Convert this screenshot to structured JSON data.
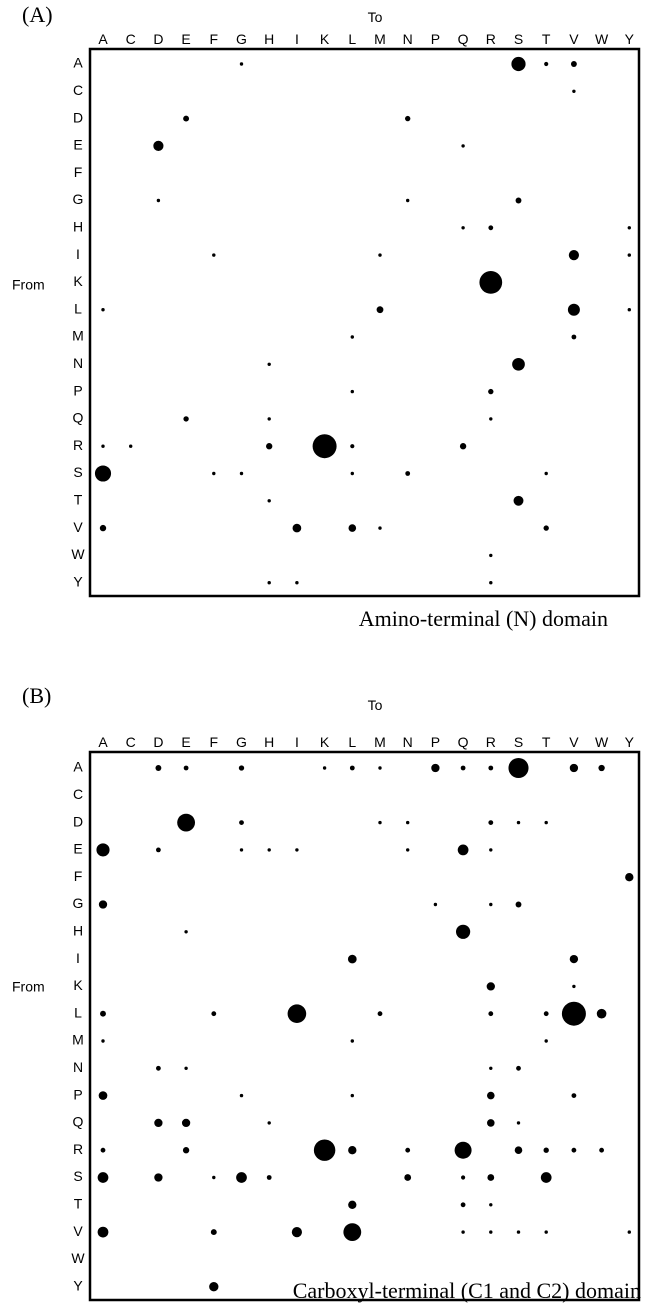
{
  "chart_data": [
    {
      "type": "scatter",
      "panel_label": "(A)",
      "xlabel": "To",
      "ylabel": "From",
      "caption": "Amino-terminal (N) domain",
      "to_labels": [
        "A",
        "C",
        "D",
        "E",
        "F",
        "G",
        "H",
        "I",
        "K",
        "L",
        "M",
        "N",
        "P",
        "Q",
        "R",
        "S",
        "T",
        "V",
        "W",
        "Y"
      ],
      "from_labels": [
        "A",
        "C",
        "D",
        "E",
        "F",
        "G",
        "H",
        "I",
        "K",
        "L",
        "M",
        "N",
        "P",
        "Q",
        "R",
        "S",
        "T",
        "V",
        "W",
        "Y"
      ],
      "size_scale": "circle area proportional to relative substitution frequency (1 = largest)",
      "points": [
        {
          "from": "A",
          "to": "G",
          "value": 0.02
        },
        {
          "from": "A",
          "to": "S",
          "value": 0.35
        },
        {
          "from": "A",
          "to": "T",
          "value": 0.03
        },
        {
          "from": "A",
          "to": "V",
          "value": 0.06
        },
        {
          "from": "C",
          "to": "V",
          "value": 0.02
        },
        {
          "from": "D",
          "to": "E",
          "value": 0.06
        },
        {
          "from": "D",
          "to": "N",
          "value": 0.05
        },
        {
          "from": "E",
          "to": "D",
          "value": 0.18
        },
        {
          "from": "E",
          "to": "Q",
          "value": 0.02
        },
        {
          "from": "G",
          "to": "D",
          "value": 0.02
        },
        {
          "from": "G",
          "to": "N",
          "value": 0.02
        },
        {
          "from": "G",
          "to": "S",
          "value": 0.06
        },
        {
          "from": "H",
          "to": "Q",
          "value": 0.02
        },
        {
          "from": "H",
          "to": "R",
          "value": 0.04
        },
        {
          "from": "H",
          "to": "Y",
          "value": 0.02
        },
        {
          "from": "I",
          "to": "F",
          "value": 0.02
        },
        {
          "from": "I",
          "to": "M",
          "value": 0.02
        },
        {
          "from": "I",
          "to": "V",
          "value": 0.18
        },
        {
          "from": "I",
          "to": "Y",
          "value": 0.02
        },
        {
          "from": "K",
          "to": "R",
          "value": 0.9
        },
        {
          "from": "L",
          "to": "A",
          "value": 0.02
        },
        {
          "from": "L",
          "to": "M",
          "value": 0.08
        },
        {
          "from": "L",
          "to": "V",
          "value": 0.25
        },
        {
          "from": "L",
          "to": "Y",
          "value": 0.02
        },
        {
          "from": "M",
          "to": "L",
          "value": 0.02
        },
        {
          "from": "M",
          "to": "V",
          "value": 0.04
        },
        {
          "from": "N",
          "to": "H",
          "value": 0.02
        },
        {
          "from": "N",
          "to": "S",
          "value": 0.28
        },
        {
          "from": "P",
          "to": "L",
          "value": 0.02
        },
        {
          "from": "P",
          "to": "R",
          "value": 0.05
        },
        {
          "from": "Q",
          "to": "E",
          "value": 0.05
        },
        {
          "from": "Q",
          "to": "H",
          "value": 0.02
        },
        {
          "from": "Q",
          "to": "R",
          "value": 0.02
        },
        {
          "from": "R",
          "to": "A",
          "value": 0.02
        },
        {
          "from": "R",
          "to": "C",
          "value": 0.02
        },
        {
          "from": "R",
          "to": "H",
          "value": 0.07
        },
        {
          "from": "R",
          "to": "K",
          "value": 1.0
        },
        {
          "from": "R",
          "to": "L",
          "value": 0.03
        },
        {
          "from": "R",
          "to": "Q",
          "value": 0.07
        },
        {
          "from": "S",
          "to": "A",
          "value": 0.45
        },
        {
          "from": "S",
          "to": "F",
          "value": 0.02
        },
        {
          "from": "S",
          "to": "G",
          "value": 0.02
        },
        {
          "from": "S",
          "to": "L",
          "value": 0.02
        },
        {
          "from": "S",
          "to": "N",
          "value": 0.04
        },
        {
          "from": "S",
          "to": "T",
          "value": 0.02
        },
        {
          "from": "T",
          "to": "H",
          "value": 0.02
        },
        {
          "from": "T",
          "to": "S",
          "value": 0.17
        },
        {
          "from": "V",
          "to": "A",
          "value": 0.07
        },
        {
          "from": "V",
          "to": "I",
          "value": 0.13
        },
        {
          "from": "V",
          "to": "L",
          "value": 0.1
        },
        {
          "from": "V",
          "to": "M",
          "value": 0.02
        },
        {
          "from": "V",
          "to": "T",
          "value": 0.05
        },
        {
          "from": "W",
          "to": "R",
          "value": 0.02
        },
        {
          "from": "Y",
          "to": "H",
          "value": 0.02
        },
        {
          "from": "Y",
          "to": "I",
          "value": 0.02
        },
        {
          "from": "Y",
          "to": "R",
          "value": 0.02
        }
      ]
    },
    {
      "type": "scatter",
      "panel_label": "(B)",
      "xlabel": "To",
      "ylabel": "From",
      "caption": "Carboxyl-terminal (C1 and C2) domain",
      "to_labels": [
        "A",
        "C",
        "D",
        "E",
        "F",
        "G",
        "H",
        "I",
        "K",
        "L",
        "M",
        "N",
        "P",
        "Q",
        "R",
        "S",
        "T",
        "V",
        "W",
        "Y"
      ],
      "from_labels": [
        "A",
        "C",
        "D",
        "E",
        "F",
        "G",
        "H",
        "I",
        "K",
        "L",
        "M",
        "N",
        "P",
        "Q",
        "R",
        "S",
        "T",
        "V",
        "W",
        "Y"
      ],
      "size_scale": "circle area proportional to relative substitution frequency (1 = largest)",
      "points": [
        {
          "from": "A",
          "to": "D",
          "value": 0.06
        },
        {
          "from": "A",
          "to": "E",
          "value": 0.04
        },
        {
          "from": "A",
          "to": "G",
          "value": 0.05
        },
        {
          "from": "A",
          "to": "K",
          "value": 0.02
        },
        {
          "from": "A",
          "to": "L",
          "value": 0.04
        },
        {
          "from": "A",
          "to": "M",
          "value": 0.02
        },
        {
          "from": "A",
          "to": "P",
          "value": 0.12
        },
        {
          "from": "A",
          "to": "Q",
          "value": 0.04
        },
        {
          "from": "A",
          "to": "R",
          "value": 0.04
        },
        {
          "from": "A",
          "to": "S",
          "value": 0.7
        },
        {
          "from": "A",
          "to": "V",
          "value": 0.12
        },
        {
          "from": "A",
          "to": "W",
          "value": 0.07
        },
        {
          "from": "D",
          "to": "E",
          "value": 0.55
        },
        {
          "from": "D",
          "to": "G",
          "value": 0.04
        },
        {
          "from": "D",
          "to": "M",
          "value": 0.02
        },
        {
          "from": "D",
          "to": "N",
          "value": 0.02
        },
        {
          "from": "D",
          "to": "R",
          "value": 0.04
        },
        {
          "from": "D",
          "to": "S",
          "value": 0.02
        },
        {
          "from": "D",
          "to": "T",
          "value": 0.02
        },
        {
          "from": "E",
          "to": "A",
          "value": 0.3
        },
        {
          "from": "E",
          "to": "D",
          "value": 0.04
        },
        {
          "from": "E",
          "to": "G",
          "value": 0.02
        },
        {
          "from": "E",
          "to": "H",
          "value": 0.02
        },
        {
          "from": "E",
          "to": "I",
          "value": 0.02
        },
        {
          "from": "E",
          "to": "N",
          "value": 0.02
        },
        {
          "from": "E",
          "to": "Q",
          "value": 0.2
        },
        {
          "from": "E",
          "to": "R",
          "value": 0.02
        },
        {
          "from": "F",
          "to": "Y",
          "value": 0.12
        },
        {
          "from": "G",
          "to": "A",
          "value": 0.12
        },
        {
          "from": "G",
          "to": "P",
          "value": 0.02
        },
        {
          "from": "G",
          "to": "R",
          "value": 0.02
        },
        {
          "from": "G",
          "to": "S",
          "value": 0.06
        },
        {
          "from": "H",
          "to": "E",
          "value": 0.02
        },
        {
          "from": "H",
          "to": "Q",
          "value": 0.35
        },
        {
          "from": "I",
          "to": "L",
          "value": 0.13
        },
        {
          "from": "I",
          "to": "V",
          "value": 0.12
        },
        {
          "from": "K",
          "to": "R",
          "value": 0.12
        },
        {
          "from": "K",
          "to": "V",
          "value": 0.02
        },
        {
          "from": "L",
          "to": "A",
          "value": 0.06
        },
        {
          "from": "L",
          "to": "F",
          "value": 0.04
        },
        {
          "from": "L",
          "to": "I",
          "value": 0.6
        },
        {
          "from": "L",
          "to": "M",
          "value": 0.04
        },
        {
          "from": "L",
          "to": "R",
          "value": 0.04
        },
        {
          "from": "L",
          "to": "T",
          "value": 0.04
        },
        {
          "from": "L",
          "to": "V",
          "value": 1.0
        },
        {
          "from": "L",
          "to": "W",
          "value": 0.16
        },
        {
          "from": "M",
          "to": "A",
          "value": 0.02
        },
        {
          "from": "M",
          "to": "L",
          "value": 0.02
        },
        {
          "from": "M",
          "to": "T",
          "value": 0.02
        },
        {
          "from": "N",
          "to": "D",
          "value": 0.04
        },
        {
          "from": "N",
          "to": "E",
          "value": 0.02
        },
        {
          "from": "N",
          "to": "R",
          "value": 0.02
        },
        {
          "from": "N",
          "to": "S",
          "value": 0.04
        },
        {
          "from": "P",
          "to": "A",
          "value": 0.13
        },
        {
          "from": "P",
          "to": "G",
          "value": 0.02
        },
        {
          "from": "P",
          "to": "L",
          "value": 0.02
        },
        {
          "from": "P",
          "to": "R",
          "value": 0.1
        },
        {
          "from": "P",
          "to": "V",
          "value": 0.04
        },
        {
          "from": "Q",
          "to": "D",
          "value": 0.12
        },
        {
          "from": "Q",
          "to": "E",
          "value": 0.12
        },
        {
          "from": "Q",
          "to": "H",
          "value": 0.02
        },
        {
          "from": "Q",
          "to": "R",
          "value": 0.1
        },
        {
          "from": "Q",
          "to": "S",
          "value": 0.02
        },
        {
          "from": "R",
          "to": "A",
          "value": 0.04
        },
        {
          "from": "R",
          "to": "E",
          "value": 0.07
        },
        {
          "from": "R",
          "to": "K",
          "value": 0.8
        },
        {
          "from": "R",
          "to": "L",
          "value": 0.12
        },
        {
          "from": "R",
          "to": "N",
          "value": 0.04
        },
        {
          "from": "R",
          "to": "Q",
          "value": 0.5
        },
        {
          "from": "R",
          "to": "S",
          "value": 0.1
        },
        {
          "from": "R",
          "to": "T",
          "value": 0.05
        },
        {
          "from": "R",
          "to": "V",
          "value": 0.04
        },
        {
          "from": "R",
          "to": "W",
          "value": 0.04
        },
        {
          "from": "S",
          "to": "A",
          "value": 0.2
        },
        {
          "from": "S",
          "to": "D",
          "value": 0.12
        },
        {
          "from": "S",
          "to": "F",
          "value": 0.02
        },
        {
          "from": "S",
          "to": "G",
          "value": 0.2
        },
        {
          "from": "S",
          "to": "H",
          "value": 0.04
        },
        {
          "from": "S",
          "to": "N",
          "value": 0.08
        },
        {
          "from": "S",
          "to": "Q",
          "value": 0.03
        },
        {
          "from": "S",
          "to": "R",
          "value": 0.08
        },
        {
          "from": "S",
          "to": "T",
          "value": 0.2
        },
        {
          "from": "T",
          "to": "L",
          "value": 0.12
        },
        {
          "from": "T",
          "to": "Q",
          "value": 0.04
        },
        {
          "from": "T",
          "to": "R",
          "value": 0.02
        },
        {
          "from": "V",
          "to": "A",
          "value": 0.2
        },
        {
          "from": "V",
          "to": "F",
          "value": 0.06
        },
        {
          "from": "V",
          "to": "I",
          "value": 0.18
        },
        {
          "from": "V",
          "to": "L",
          "value": 0.55
        },
        {
          "from": "V",
          "to": "Q",
          "value": 0.02
        },
        {
          "from": "V",
          "to": "R",
          "value": 0.02
        },
        {
          "from": "V",
          "to": "S",
          "value": 0.02
        },
        {
          "from": "V",
          "to": "T",
          "value": 0.02
        },
        {
          "from": "V",
          "to": "Y",
          "value": 0.02
        },
        {
          "from": "Y",
          "to": "F",
          "value": 0.15
        }
      ]
    }
  ]
}
